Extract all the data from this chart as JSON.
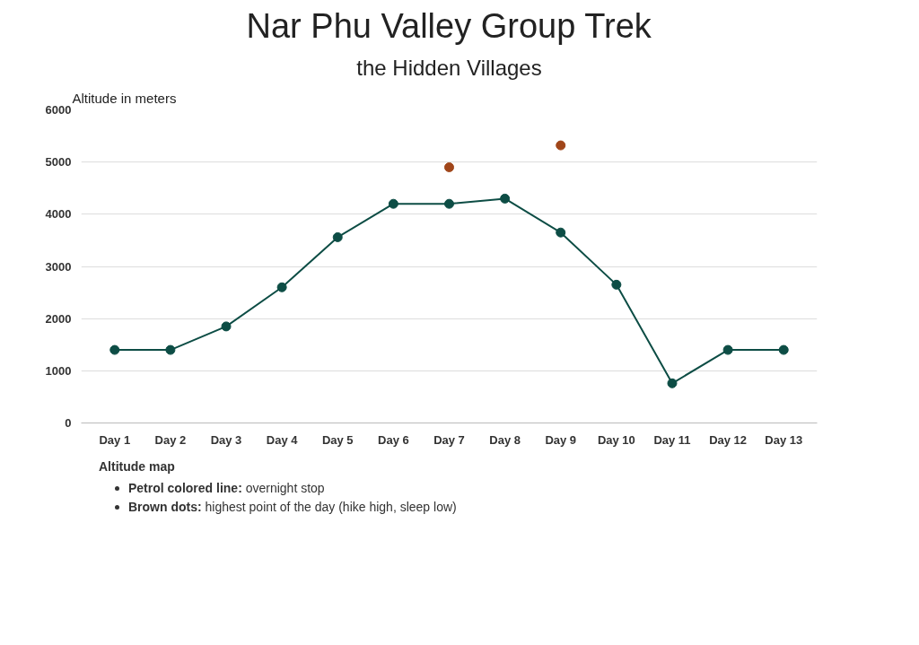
{
  "chart_data": {
    "type": "line",
    "title": "Nar Phu Valley Group Trek",
    "subtitle": "the Hidden Villages",
    "ylabel": "Altitude in meters",
    "categories": [
      "Day 1",
      "Day 2",
      "Day 3",
      "Day 4",
      "Day 5",
      "Day 6",
      "Day 7",
      "Day 8",
      "Day 9",
      "Day 10",
      "Day 11",
      "Day 12",
      "Day 13"
    ],
    "series": [
      {
        "color": "#0d4d45",
        "values": [
          1400,
          1400,
          1850,
          2600,
          3560,
          4200,
          4200,
          4300,
          3650,
          2650,
          760,
          1400,
          1400
        ]
      },
      {
        "type": "scatter",
        "color": "#a0461a",
        "values": [
          null,
          null,
          null,
          null,
          null,
          null,
          4900,
          null,
          5320,
          null,
          null,
          null,
          null
        ]
      }
    ],
    "ylim": [
      0,
      6000
    ],
    "yticks": [
      0,
      1000,
      2000,
      3000,
      4000,
      5000,
      6000
    ],
    "grid": "y",
    "marker": "circle",
    "annotations": [
      "Altitude map",
      "Petrol colored line: overnight stop",
      "Brown dots: highest point of the day (hike high, sleep low)"
    ]
  }
}
